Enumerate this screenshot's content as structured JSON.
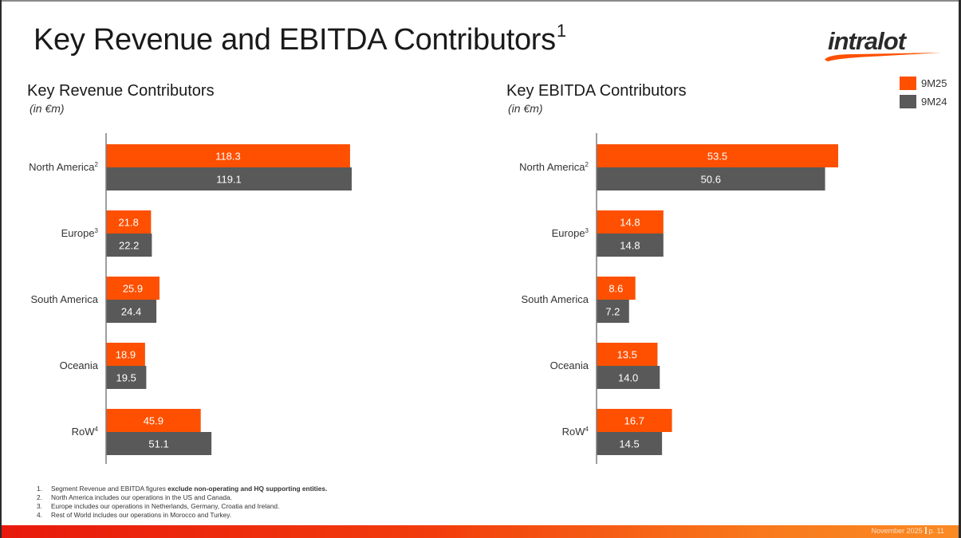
{
  "page": {
    "title": "Key Revenue and EBITDA Contributors",
    "title_superscript": "1"
  },
  "logo": {
    "text": "intralot"
  },
  "colors": {
    "accent": "#fe5000",
    "secondary": "#595959"
  },
  "legend": [
    {
      "label": "9M25",
      "color": "#fe5000"
    },
    {
      "label": "9M24",
      "color": "#595959"
    }
  ],
  "chart_data": [
    {
      "type": "bar",
      "orientation": "horizontal",
      "title": "Key Revenue Contributors",
      "subtitle": "(in €m)",
      "categories": [
        "North America",
        "Europe",
        "South America",
        "Oceania",
        "RoW"
      ],
      "category_superscripts": [
        "2",
        "3",
        "",
        "",
        "4"
      ],
      "series": [
        {
          "name": "9M25",
          "color": "#fe5000",
          "values": [
            118.3,
            21.8,
            25.9,
            18.9,
            45.9
          ]
        },
        {
          "name": "9M24",
          "color": "#595959",
          "values": [
            119.1,
            22.2,
            24.4,
            19.5,
            51.1
          ]
        }
      ],
      "xlim": [
        0,
        119.1
      ],
      "grid": false,
      "data_labels": true,
      "legend_position": "top-right"
    },
    {
      "type": "bar",
      "orientation": "horizontal",
      "title": "Key EBITDA Contributors",
      "subtitle": "(in €m)",
      "categories": [
        "North America",
        "Europe",
        "South America",
        "Oceania",
        "RoW"
      ],
      "category_superscripts": [
        "2",
        "3",
        "",
        "",
        "4"
      ],
      "series": [
        {
          "name": "9M25",
          "color": "#fe5000",
          "values": [
            53.5,
            14.8,
            8.6,
            13.5,
            16.7
          ]
        },
        {
          "name": "9M24",
          "color": "#595959",
          "values": [
            50.6,
            14.8,
            7.2,
            14.0,
            14.5
          ]
        }
      ],
      "xlim": [
        0,
        53.5
      ],
      "grid": false,
      "data_labels": true,
      "legend_position": "top-right"
    }
  ],
  "footnotes": [
    {
      "num": "1.",
      "text": "Segment Revenue and EBITDA figures ",
      "bold": "exclude non-operating and HQ supporting entities."
    },
    {
      "num": "2.",
      "text": "North America includes our operations in the US and Canada.",
      "bold": ""
    },
    {
      "num": "3.",
      "text": "Europe includes our operations in Netherlands, Germany, Croatia  and Ireland.",
      "bold": ""
    },
    {
      "num": "4.",
      "text": "Rest of World includes our operations in Morocco and Turkey.",
      "bold": ""
    }
  ],
  "footer": {
    "date": "November 2025",
    "page": "p. 11"
  }
}
